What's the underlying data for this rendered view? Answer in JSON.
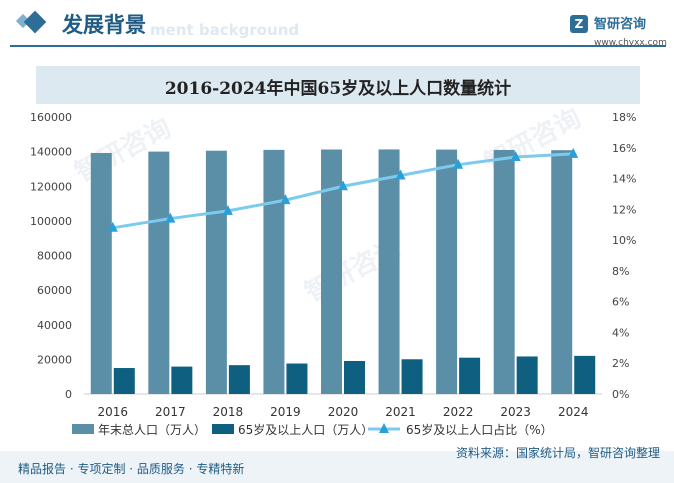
{
  "header": {
    "section_title": "发展背景",
    "section_sub": "ment background",
    "logo_name": "智研咨询",
    "logo_url": "www.chyxx.com"
  },
  "footer": {
    "left": "精品报告 · 专项定制 · 品质服务 · 专精特新",
    "source": "资料来源：国家统计局，智研咨询整理"
  },
  "chart_data": {
    "type": "bar",
    "title": "2016-2024年中国65岁及以上人口数量统计",
    "categories": [
      "2016",
      "2017",
      "2018",
      "2019",
      "2020",
      "2021",
      "2022",
      "2023",
      "2024"
    ],
    "series": [
      {
        "name": "年末总人口（万人）",
        "kind": "bar",
        "axis": "left",
        "color": "#5b8fa8",
        "values": [
          139232,
          140011,
          140541,
          141008,
          141212,
          141260,
          141175,
          140967,
          140828
        ]
      },
      {
        "name": "65岁及以上人口（万人）",
        "kind": "bar",
        "axis": "left",
        "color": "#0f5f80",
        "values": [
          15003,
          15831,
          16658,
          17603,
          19064,
          20056,
          20978,
          21676,
          22023
        ]
      },
      {
        "name": "65岁及以上人口占比（%）",
        "kind": "line",
        "axis": "right",
        "color": "#7ccbee",
        "values": [
          10.8,
          11.4,
          11.9,
          12.6,
          13.5,
          14.2,
          14.9,
          15.4,
          15.6
        ]
      }
    ],
    "ylim_left": [
      0,
      160000
    ],
    "left_ticks": [
      "0",
      "20000",
      "40000",
      "60000",
      "80000",
      "100000",
      "120000",
      "140000",
      "160000"
    ],
    "ylim_right": [
      0,
      18
    ],
    "right_ticks": [
      "0%",
      "2%",
      "4%",
      "6%",
      "8%",
      "10%",
      "12%",
      "14%",
      "16%",
      "18%"
    ],
    "grid": false,
    "legend_position": "bottom"
  }
}
